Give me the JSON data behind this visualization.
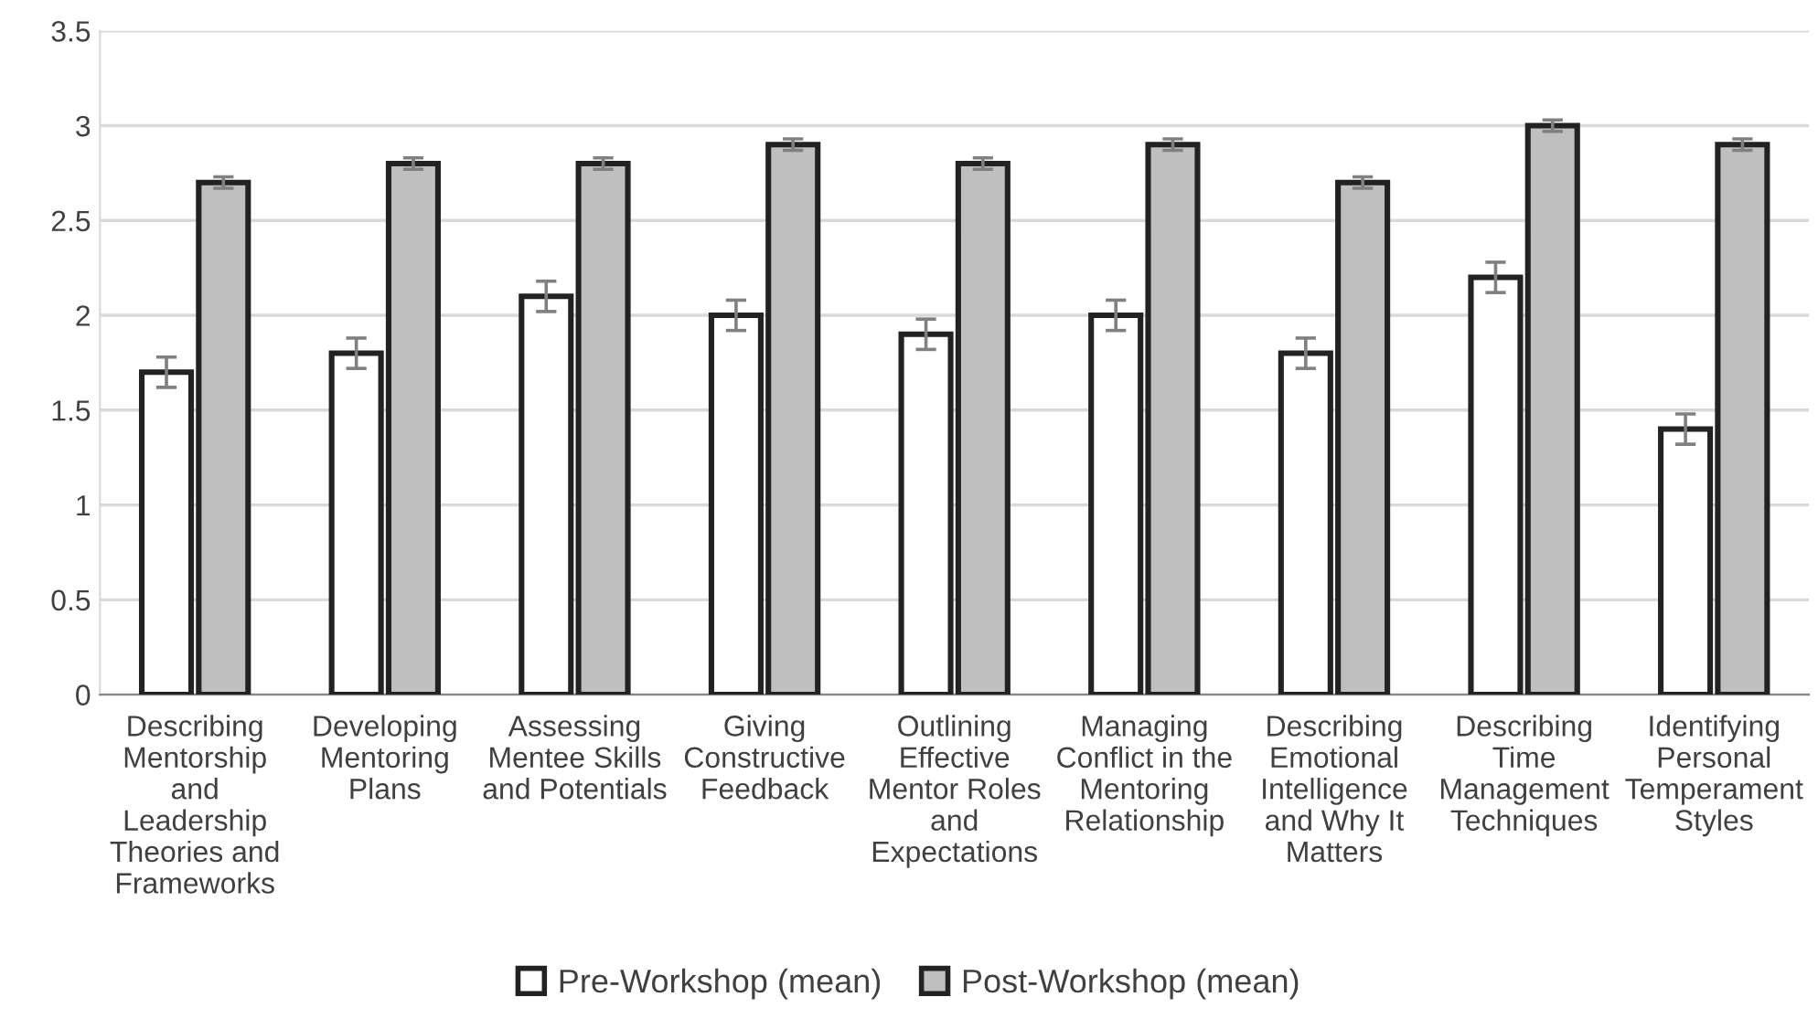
{
  "chart_data": {
    "type": "bar",
    "categories": [
      "Describing\nMentorship\nand\nLeadership\nTheories and\nFrameworks",
      "Developing\nMentoring\nPlans",
      "Assessing\nMentee Skills\nand Potentials",
      "Giving\nConstructive\nFeedback",
      "Outlining\nEffective\nMentor Roles\nand\nExpectations",
      "Managing\nConflict in the\nMentoring\nRelationship",
      "Describing\nEmotional\nIntelligence\nand Why It\nMatters",
      "Describing\nTime\nManagement\nTechniques",
      "Identifying\nPersonal\nTemperament\nStyles"
    ],
    "series": [
      {
        "name": "Pre-Workshop (mean)",
        "color": "#ffffff",
        "values": [
          1.7,
          1.8,
          2.1,
          2.0,
          1.9,
          2.0,
          1.8,
          2.2,
          1.4
        ],
        "errors": [
          0.08,
          0.08,
          0.08,
          0.08,
          0.08,
          0.08,
          0.08,
          0.08,
          0.08
        ]
      },
      {
        "name": "Post-Workshop (mean)",
        "color": "#bfbfbf",
        "values": [
          2.7,
          2.8,
          2.8,
          2.9,
          2.8,
          2.9,
          2.7,
          3.0,
          2.9
        ],
        "errors": [
          0.03,
          0.03,
          0.03,
          0.03,
          0.03,
          0.03,
          0.03,
          0.03,
          0.03
        ]
      }
    ],
    "ylim": [
      0,
      3.5
    ],
    "yticks": [
      0,
      0.5,
      1,
      1.5,
      2,
      2.5,
      3,
      3.5
    ],
    "grid": "y",
    "legend": "bottom"
  }
}
